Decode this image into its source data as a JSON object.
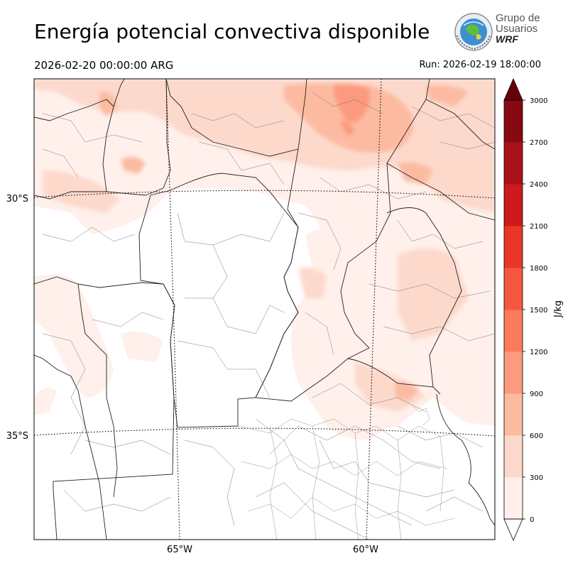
{
  "header": {
    "title": "Energía potencial convectiva disponible",
    "valid_time": "2026-02-20 00:00:00 ARG",
    "run_time": "Run: 2026-02-19 18:00:00"
  },
  "logo": {
    "line1": "Grupo de",
    "line2": "Usuarios",
    "line3": "WRF"
  },
  "map": {
    "lat_labels": [
      "30°S",
      "35°S"
    ],
    "lon_labels": [
      "65°W",
      "60°W"
    ]
  },
  "colorbar": {
    "label": "J/kg",
    "ticks": [
      "0",
      "300",
      "600",
      "900",
      "1200",
      "1500",
      "1800",
      "2100",
      "2400",
      "2700",
      "3000"
    ],
    "colors": [
      "#fff0eb",
      "#fdd9cc",
      "#fcbba1",
      "#fc9a7f",
      "#fb7b5c",
      "#f5573e",
      "#ea3629",
      "#cc1a1d",
      "#ab1217",
      "#860a12",
      "#67000d"
    ]
  },
  "chart_data": {
    "type": "heatmap",
    "title": "Energía potencial convectiva disponible",
    "units": "J/kg",
    "levels": [
      0,
      300,
      600,
      900,
      1200,
      1500,
      1800,
      2100,
      2400,
      2700,
      3000
    ],
    "extend": "both",
    "lat_ticks": [
      "30°S",
      "35°S"
    ],
    "lon_ticks": [
      "65°W",
      "60°W"
    ]
  }
}
